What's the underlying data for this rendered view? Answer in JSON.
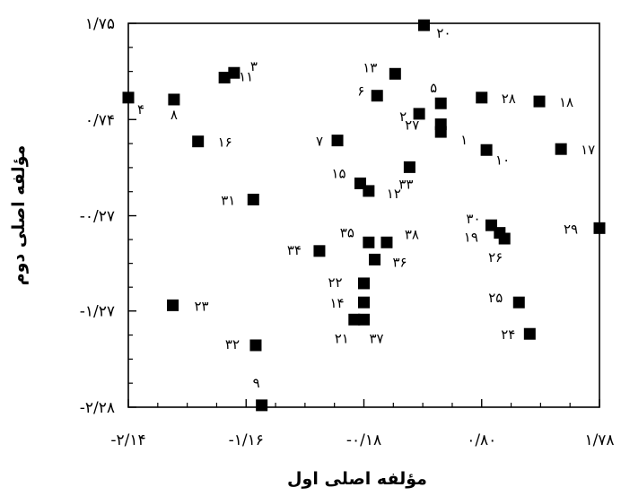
{
  "chart_data": {
    "type": "scatter",
    "xlabel": "مؤلفه اصلی اول",
    "ylabel": "مؤلفه اصلی دوم",
    "xlim": [
      -2.14,
      1.78
    ],
    "ylim": [
      -2.28,
      1.75
    ],
    "x_ticks": [
      -2.14,
      -1.16,
      -0.18,
      0.8,
      1.78
    ],
    "x_tick_labels": [
      "-۲/۱۴",
      "-۱/۱۶",
      "-۰/۱۸",
      "۰/۸۰",
      "۱/۷۸"
    ],
    "y_ticks": [
      1.75,
      0.74,
      -0.27,
      -1.27,
      -2.28
    ],
    "y_tick_labels": [
      "۱/۷۵",
      "۰/۷۴",
      "-۰/۲۷",
      "-۱/۲۷",
      "-۲/۲۸"
    ],
    "grid": false,
    "legend": "none",
    "marker_color": "#000000",
    "points": [
      {
        "label": "۱",
        "x": 0.46,
        "y": 0.61
      },
      {
        "label": "۲",
        "x": 0.28,
        "y": 0.8
      },
      {
        "label": "۳",
        "x": -1.26,
        "y": 1.23
      },
      {
        "label": "۴",
        "x": -2.14,
        "y": 0.97
      },
      {
        "label": "۵",
        "x": 0.46,
        "y": 0.91
      },
      {
        "label": "۶",
        "x": -0.07,
        "y": 0.99
      },
      {
        "label": "۷",
        "x": -0.4,
        "y": 0.52
      },
      {
        "label": "۸",
        "x": -1.76,
        "y": 0.95
      },
      {
        "label": "۹",
        "x": -1.03,
        "y": -2.26
      },
      {
        "label": "۱۰",
        "x": 0.84,
        "y": 0.42
      },
      {
        "label": "۱۱",
        "x": -1.34,
        "y": 1.18
      },
      {
        "label": "۱۲",
        "x": -0.14,
        "y": -0.01
      },
      {
        "label": "۱۳",
        "x": 0.08,
        "y": 1.22
      },
      {
        "label": "۱۴",
        "x": -0.18,
        "y": -1.18
      },
      {
        "label": "۱۵",
        "x": -0.21,
        "y": 0.07
      },
      {
        "label": "۱۶",
        "x": -1.56,
        "y": 0.51
      },
      {
        "label": "۱۷",
        "x": 1.46,
        "y": 0.43
      },
      {
        "label": "۱۸",
        "x": 1.28,
        "y": 0.93
      },
      {
        "label": "۱۹",
        "x": 0.95,
        "y": -0.45
      },
      {
        "label": "۲۰",
        "x": 0.32,
        "y": 1.73
      },
      {
        "label": "۲۱",
        "x": -0.26,
        "y": -1.36
      },
      {
        "label": "۲۲",
        "x": -0.18,
        "y": -0.98
      },
      {
        "label": "۲۳",
        "x": -1.77,
        "y": -1.21
      },
      {
        "label": "۲۴",
        "x": 1.2,
        "y": -1.51
      },
      {
        "label": "۲۵",
        "x": 1.11,
        "y": -1.18
      },
      {
        "label": "۲۶",
        "x": 0.99,
        "y": -0.51
      },
      {
        "label": "۲۷",
        "x": 0.46,
        "y": 0.69
      },
      {
        "label": "۲۸",
        "x": 0.8,
        "y": 0.97
      },
      {
        "label": "۲۹",
        "x": 1.78,
        "y": -0.4
      },
      {
        "label": "۳۰",
        "x": 0.88,
        "y": -0.37
      },
      {
        "label": "۳۱",
        "x": -1.1,
        "y": -0.1
      },
      {
        "label": "۳۲",
        "x": -1.08,
        "y": -1.63
      },
      {
        "label": "۳۳",
        "x": 0.2,
        "y": 0.24
      },
      {
        "label": "۳۴",
        "x": -0.55,
        "y": -0.64
      },
      {
        "label": "۳۵",
        "x": -0.14,
        "y": -0.55
      },
      {
        "label": "۳۶",
        "x": -0.09,
        "y": -0.73
      },
      {
        "label": "۳۷",
        "x": -0.18,
        "y": -1.36
      },
      {
        "label": "۳۸",
        "x": 0.01,
        "y": -0.55
      }
    ]
  }
}
